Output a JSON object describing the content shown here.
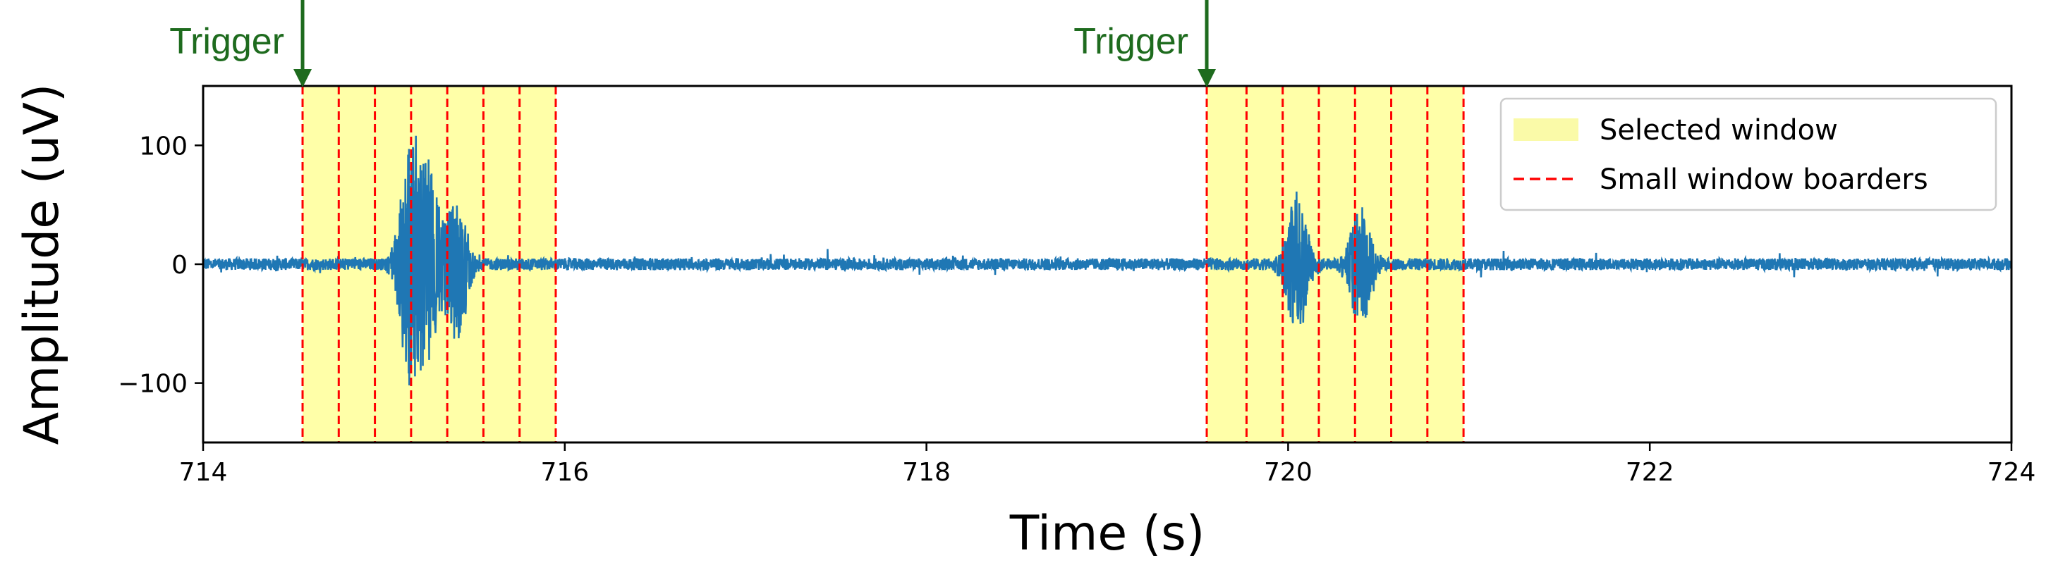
{
  "chart_data": {
    "type": "line",
    "title": "",
    "xlabel": "Time (s)",
    "ylabel": "Amplitude (uV)",
    "xlim": [
      714,
      724
    ],
    "ylim": [
      -150,
      150
    ],
    "xticks": [
      714,
      716,
      718,
      720,
      722,
      724
    ],
    "yticks": [
      -100,
      0,
      100
    ],
    "ytick_labels": [
      "−100",
      "0",
      "100"
    ],
    "grid": false,
    "legend_position": "top-right",
    "legend": [
      {
        "label": "Selected window",
        "kind": "patch",
        "color": "#fafaa8"
      },
      {
        "label": "Small window boarders",
        "kind": "dashed-line",
        "color": "#ff0000"
      }
    ],
    "colors": {
      "signal": "#1f77b4",
      "window_fill": "#ffff99",
      "border": "#ff0000",
      "trigger": "#1e6b1e"
    },
    "series": [
      {
        "type": "line",
        "baseline_noise_uV": 5,
        "bursts": [
          {
            "t": 715.15,
            "amp_max": 116,
            "amp_min": -118
          },
          {
            "t": 715.25,
            "amp_max": 90,
            "amp_min": -80
          },
          {
            "t": 715.4,
            "amp_max": 58,
            "amp_min": -72
          },
          {
            "t": 720.05,
            "amp_max": 68,
            "amp_min": -64
          },
          {
            "t": 720.4,
            "amp_max": 55,
            "amp_min": -62
          }
        ]
      }
    ],
    "selected_windows": [
      {
        "start": 714.55,
        "end": 715.95
      },
      {
        "start": 719.55,
        "end": 720.97
      }
    ],
    "window_borders": [
      714.55,
      714.75,
      714.95,
      715.15,
      715.35,
      715.55,
      715.75,
      715.95,
      719.55,
      719.77,
      719.97,
      720.17,
      720.37,
      720.57,
      720.77,
      720.97
    ],
    "annotations": [
      {
        "text": "Trigger",
        "x": 714.55
      },
      {
        "text": "Trigger",
        "x": 719.55
      }
    ]
  }
}
